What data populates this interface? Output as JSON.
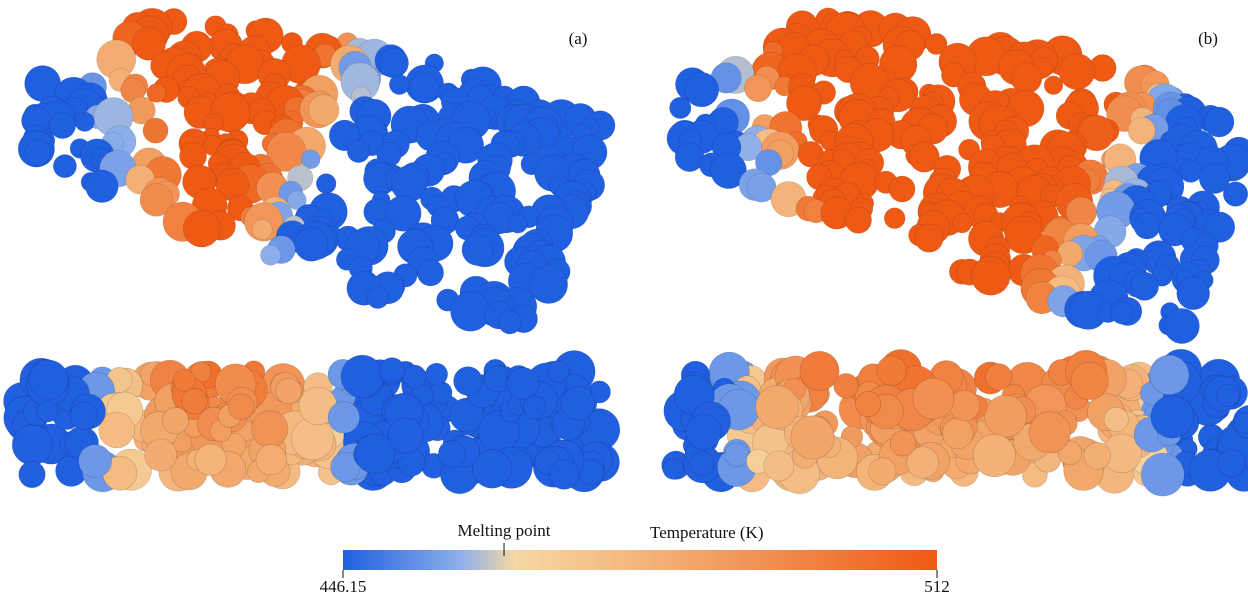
{
  "panels": [
    {
      "label": "(a)"
    },
    {
      "label": "(b)"
    }
  ],
  "colorbar": {
    "title": "Temperature (K)",
    "min": 446.15,
    "max": 512,
    "annotation": {
      "text": "Melting point",
      "value": 464
    }
  }
}
